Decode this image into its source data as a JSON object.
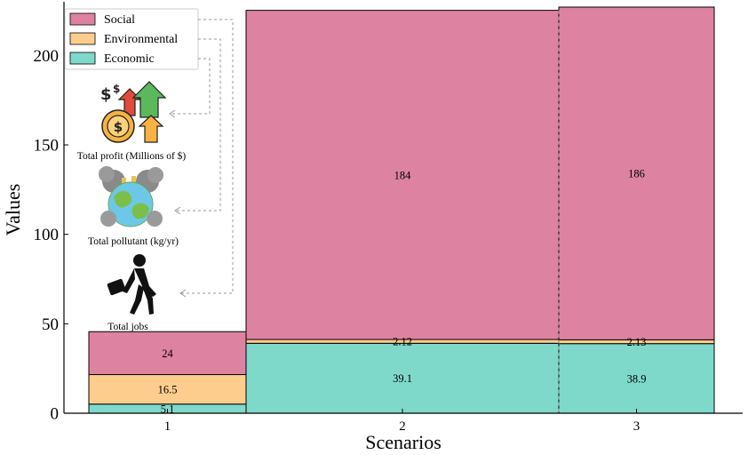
{
  "chart_data": {
    "type": "bar",
    "subtype": "stacked-marimekko",
    "categories": [
      "1",
      "2",
      "3"
    ],
    "series": [
      {
        "name": "Economic",
        "values": [
          5.1,
          39.1,
          38.9
        ]
      },
      {
        "name": "Environmental",
        "values": [
          16.5,
          2.12,
          2.13
        ]
      },
      {
        "name": "Social",
        "values": [
          24,
          184,
          186
        ]
      }
    ],
    "data_labels": [
      [
        "5.1",
        "16.5",
        "24"
      ],
      [
        "39.1",
        "2.12",
        "184"
      ],
      [
        "38.9",
        "2.13",
        "186"
      ]
    ],
    "xlabel": "Scenarios",
    "ylabel": "Values",
    "ylim": [
      0,
      230
    ],
    "yticks": [
      0,
      50,
      100,
      150,
      200
    ],
    "grid": false,
    "legend_position": "top-left",
    "colors": {
      "Economic": "#7fd9cb",
      "Environmental": "#fdcd8e",
      "Social": "#de82a1"
    },
    "icon_captions": [
      "Total profit (Millions of $)",
      "Total pollutant (kg/yr)",
      "Total jobs"
    ],
    "icons": [
      "money-growth-icon",
      "polluted-earth-icon",
      "walking-worker-icon"
    ]
  }
}
